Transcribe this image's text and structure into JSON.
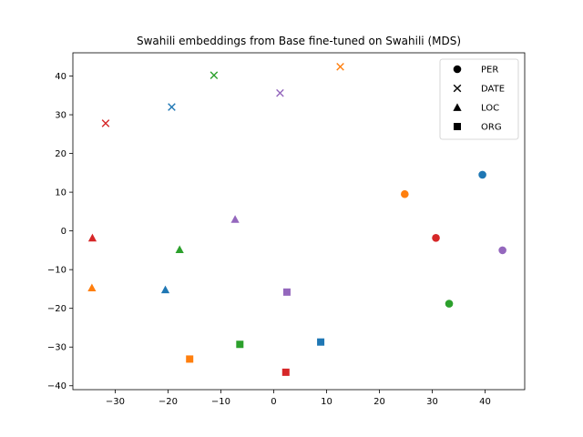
{
  "chart_data": {
    "type": "scatter",
    "title": "Swahili embeddings from Base fine-tuned on Swahili (MDS)",
    "xlabel": "",
    "ylabel": "",
    "xlim": [
      -38,
      47.5
    ],
    "ylim": [
      -41,
      46
    ],
    "xticks": [
      -30,
      -20,
      -10,
      0,
      10,
      20,
      30,
      40
    ],
    "yticks": [
      -40,
      -30,
      -20,
      -10,
      0,
      10,
      20,
      30,
      40
    ],
    "grid": false,
    "legend_position": "top-right",
    "legend": [
      {
        "label": "PER",
        "marker": "circle"
      },
      {
        "label": "DATE",
        "marker": "x"
      },
      {
        "label": "LOC",
        "marker": "triangle"
      },
      {
        "label": "ORG",
        "marker": "square"
      }
    ],
    "points": [
      {
        "x": 39.5,
        "y": 14.5,
        "marker": "circle",
        "color": "#1f77b4"
      },
      {
        "x": 24.8,
        "y": 9.5,
        "marker": "circle",
        "color": "#ff7f0e"
      },
      {
        "x": 30.7,
        "y": -1.8,
        "marker": "circle",
        "color": "#d62728"
      },
      {
        "x": 43.3,
        "y": -5.0,
        "marker": "circle",
        "color": "#9467bd"
      },
      {
        "x": 33.2,
        "y": -18.8,
        "marker": "circle",
        "color": "#2ca02c"
      },
      {
        "x": -19.3,
        "y": 32.0,
        "marker": "x",
        "color": "#1f77b4"
      },
      {
        "x": -11.3,
        "y": 40.2,
        "marker": "x",
        "color": "#2ca02c"
      },
      {
        "x": 12.6,
        "y": 42.4,
        "marker": "x",
        "color": "#ff7f0e"
      },
      {
        "x": 1.2,
        "y": 35.6,
        "marker": "x",
        "color": "#9467bd"
      },
      {
        "x": -31.8,
        "y": 27.8,
        "marker": "x",
        "color": "#d62728"
      },
      {
        "x": -34.3,
        "y": -1.8,
        "marker": "triangle",
        "color": "#d62728"
      },
      {
        "x": -17.8,
        "y": -4.8,
        "marker": "triangle",
        "color": "#2ca02c"
      },
      {
        "x": -7.3,
        "y": 3.0,
        "marker": "triangle",
        "color": "#9467bd"
      },
      {
        "x": -34.4,
        "y": -14.7,
        "marker": "triangle",
        "color": "#ff7f0e"
      },
      {
        "x": -20.5,
        "y": -15.2,
        "marker": "triangle",
        "color": "#1f77b4"
      },
      {
        "x": 2.5,
        "y": -15.8,
        "marker": "square",
        "color": "#9467bd"
      },
      {
        "x": 8.9,
        "y": -28.7,
        "marker": "square",
        "color": "#1f77b4"
      },
      {
        "x": -6.4,
        "y": -29.3,
        "marker": "square",
        "color": "#2ca02c"
      },
      {
        "x": -15.9,
        "y": -33.1,
        "marker": "square",
        "color": "#ff7f0e"
      },
      {
        "x": 2.3,
        "y": -36.5,
        "marker": "square",
        "color": "#d62728"
      }
    ]
  }
}
